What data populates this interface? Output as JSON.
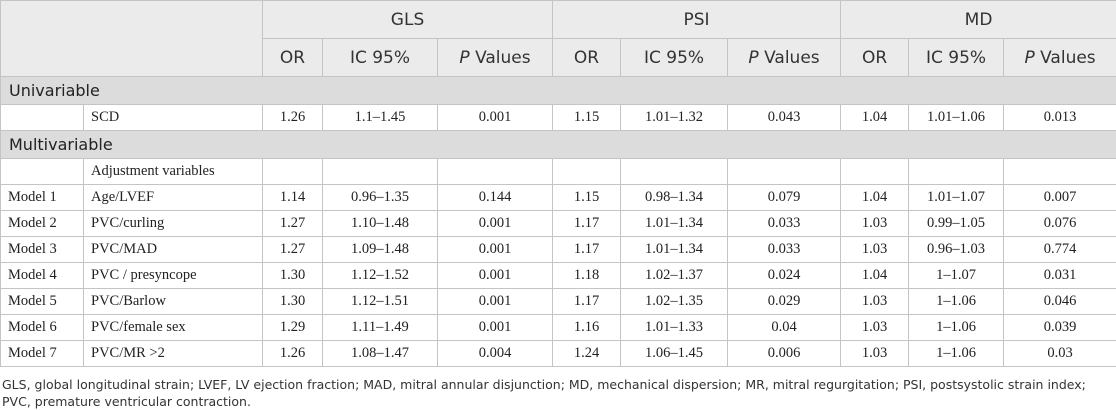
{
  "table": {
    "groups": [
      {
        "name": "GLS",
        "columns": [
          "OR",
          "IC 95%",
          "P Values"
        ]
      },
      {
        "name": "PSI",
        "columns": [
          "OR",
          "IC 95%",
          "P Values"
        ]
      },
      {
        "name": "MD",
        "columns": [
          "OR",
          "IC 95%",
          "P Values"
        ]
      }
    ],
    "sections": [
      {
        "title": "Univariable",
        "rows": [
          {
            "variable": "SCD",
            "cells": [
              "1.26",
              "1.1–1.45",
              "0.001",
              "1.15",
              "1.01–1.32",
              "0.043",
              "1.04",
              "1.01–1.06",
              "0.013"
            ]
          }
        ]
      },
      {
        "title": "Multivariable",
        "rows": [
          {
            "variable": "Adjustment variables"
          },
          {
            "label": "Model 1",
            "variable": "Age/LVEF",
            "cells": [
              "1.14",
              "0.96–1.35",
              "0.144",
              "1.15",
              "0.98–1.34",
              "0.079",
              "1.04",
              "1.01–1.07",
              "0.007"
            ]
          },
          {
            "label": "Model 2",
            "variable": "PVC/curling",
            "cells": [
              "1.27",
              "1.10–1.48",
              "0.001",
              "1.17",
              "1.01–1.34",
              "0.033",
              "1.03",
              "0.99–1.05",
              "0.076"
            ]
          },
          {
            "label": "Model 3",
            "variable": "PVC/MAD",
            "cells": [
              "1.27",
              "1.09–1.48",
              "0.001",
              "1.17",
              "1.01–1.34",
              "0.033",
              "1.03",
              "0.96–1.03",
              "0.774"
            ]
          },
          {
            "label": "Model 4",
            "variable": "PVC / presyncope",
            "cells": [
              "1.30",
              "1.12–1.52",
              "0.001",
              "1.18",
              "1.02–1.37",
              "0.024",
              "1.04",
              "1–1.07",
              "0.031"
            ]
          },
          {
            "label": "Model 5",
            "variable": "PVC/Barlow",
            "cells": [
              "1.30",
              "1.12–1.51",
              "0.001",
              "1.17",
              "1.02–1.35",
              "0.029",
              "1.03",
              "1–1.06",
              "0.046"
            ]
          },
          {
            "label": "Model 6",
            "variable": "PVC/female sex",
            "cells": [
              "1.29",
              "1.11–1.49",
              "0.001",
              "1.16",
              "1.01–1.33",
              "0.04",
              "1.03",
              "1–1.06",
              "0.039"
            ]
          },
          {
            "label": "Model 7",
            "variable": "PVC/MR >2",
            "cells": [
              "1.26",
              "1.08–1.47",
              "0.004",
              "1.24",
              "1.06–1.45",
              "0.006",
              "1.03",
              "1–1.06",
              "0.03"
            ]
          }
        ]
      }
    ],
    "footnote": "GLS, global longitudinal strain; LVEF, LV ejection fraction; MAD, mitral annular disjunction; MD, mechanical dispersion; MR, mitral regurgitation; PSI, postsystolic strain index; PVC, premature ventricular contraction."
  }
}
